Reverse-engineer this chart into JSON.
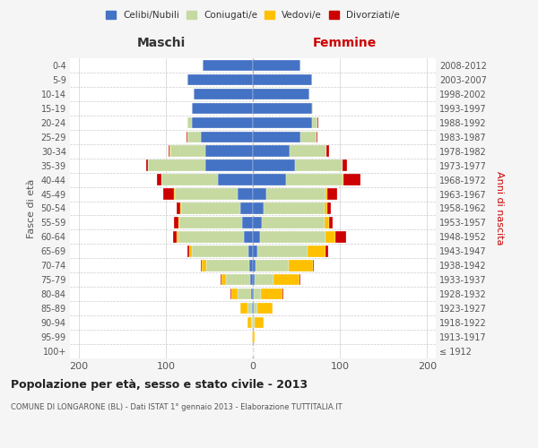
{
  "age_groups": [
    "100+",
    "95-99",
    "90-94",
    "85-89",
    "80-84",
    "75-79",
    "70-74",
    "65-69",
    "60-64",
    "55-59",
    "50-54",
    "45-49",
    "40-44",
    "35-39",
    "30-34",
    "25-29",
    "20-24",
    "15-19",
    "10-14",
    "5-9",
    "0-4"
  ],
  "birth_years": [
    "≤ 1912",
    "1913-1917",
    "1918-1922",
    "1923-1927",
    "1928-1932",
    "1933-1937",
    "1938-1942",
    "1943-1947",
    "1948-1952",
    "1953-1957",
    "1958-1962",
    "1963-1967",
    "1968-1972",
    "1973-1977",
    "1978-1982",
    "1983-1987",
    "1988-1992",
    "1993-1997",
    "1998-2002",
    "2003-2007",
    "2008-2012"
  ],
  "males": {
    "celibi": [
      0,
      0,
      0,
      1,
      2,
      3,
      4,
      5,
      10,
      12,
      14,
      18,
      40,
      55,
      55,
      60,
      70,
      70,
      68,
      75,
      58
    ],
    "coniugati": [
      0,
      0,
      2,
      5,
      15,
      28,
      50,
      65,
      75,
      72,
      68,
      72,
      65,
      65,
      40,
      15,
      5,
      0,
      0,
      0,
      0
    ],
    "vedovi": [
      0,
      1,
      4,
      8,
      8,
      5,
      5,
      3,
      2,
      1,
      1,
      1,
      0,
      0,
      1,
      0,
      0,
      0,
      0,
      0,
      0
    ],
    "divorziati": [
      0,
      0,
      0,
      0,
      1,
      1,
      1,
      2,
      5,
      6,
      5,
      12,
      5,
      3,
      1,
      1,
      0,
      0,
      0,
      0,
      0
    ]
  },
  "females": {
    "nubili": [
      0,
      0,
      0,
      1,
      1,
      2,
      3,
      5,
      8,
      10,
      12,
      15,
      38,
      48,
      42,
      55,
      68,
      68,
      65,
      68,
      55
    ],
    "coniugate": [
      0,
      0,
      2,
      4,
      8,
      22,
      38,
      58,
      75,
      72,
      70,
      68,
      65,
      55,
      42,
      18,
      6,
      1,
      0,
      0,
      0
    ],
    "vedove": [
      0,
      2,
      10,
      18,
      25,
      30,
      28,
      20,
      12,
      5,
      3,
      2,
      1,
      0,
      0,
      0,
      0,
      0,
      0,
      0,
      0
    ],
    "divorziate": [
      0,
      0,
      0,
      0,
      1,
      1,
      1,
      3,
      12,
      5,
      5,
      12,
      20,
      5,
      4,
      1,
      1,
      0,
      0,
      0,
      0
    ]
  },
  "colors": {
    "celibi": "#4472c4",
    "coniugati": "#c5d9a0",
    "vedovi": "#ffc000",
    "divorziati": "#cc0000"
  },
  "legend_labels": [
    "Celibi/Nubili",
    "Coniugati/e",
    "Vedovi/e",
    "Divorziati/e"
  ],
  "title": "Popolazione per età, sesso e stato civile - 2013",
  "subtitle": "COMUNE DI LONGARONE (BL) - Dati ISTAT 1° gennaio 2013 - Elaborazione TUTTITALIA.IT",
  "ylabel_left": "Fasce di età",
  "ylabel_right": "Anni di nascita",
  "xlabel_maschi": "Maschi",
  "xlabel_femmine": "Femmine",
  "xlim": 210,
  "background_color": "#f5f5f5",
  "plot_bg": "#ffffff"
}
